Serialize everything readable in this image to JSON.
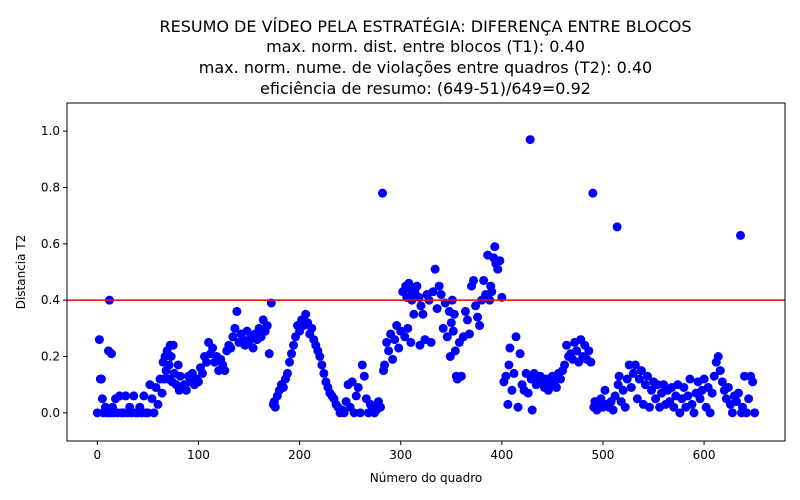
{
  "chart_data": {
    "type": "scatter",
    "title_lines": [
      "RESUMO DE VÍDEO PELA ESTRATÉGIA: DIFERENÇA ENTRE BLOCOS",
      "max. norm. dist. entre blocos (T1): 0.40",
      "max. norm. nume. de violações entre quadros (T2): 0.40",
      "eficiência de resumo: (649-51)/649=0.92"
    ],
    "xlabel": "Número do quadro",
    "ylabel": "Distancia T2",
    "xlim": [
      -30,
      680
    ],
    "ylim": [
      -0.1,
      1.1
    ],
    "xticks": [
      0,
      100,
      200,
      300,
      400,
      500,
      600
    ],
    "yticks": [
      0.0,
      0.2,
      0.4,
      0.6,
      0.8,
      1.0
    ],
    "ytick_labels": [
      "0.0",
      "0.2",
      "0.4",
      "0.6",
      "0.8",
      "1.0"
    ],
    "grid": false,
    "marker_color": "#0000ff",
    "threshold": {
      "y": 0.4,
      "color": "#ff0000"
    },
    "points": [
      [
        0,
        0.0
      ],
      [
        2,
        0.26
      ],
      [
        3,
        0.12
      ],
      [
        4,
        0.12
      ],
      [
        5,
        0.05
      ],
      [
        6,
        0.0
      ],
      [
        8,
        0.02
      ],
      [
        10,
        0.0
      ],
      [
        11,
        0.22
      ],
      [
        12,
        0.4
      ],
      [
        13,
        0.0
      ],
      [
        14,
        0.21
      ],
      [
        15,
        0.02
      ],
      [
        16,
        0.0
      ],
      [
        18,
        0.05
      ],
      [
        20,
        0.0
      ],
      [
        22,
        0.06
      ],
      [
        24,
        0.0
      ],
      [
        26,
        0.0
      ],
      [
        28,
        0.06
      ],
      [
        30,
        0.0
      ],
      [
        32,
        0.02
      ],
      [
        34,
        0.0
      ],
      [
        36,
        0.06
      ],
      [
        38,
        0.0
      ],
      [
        40,
        0.0
      ],
      [
        42,
        0.02
      ],
      [
        44,
        0.0
      ],
      [
        46,
        0.06
      ],
      [
        48,
        0.0
      ],
      [
        50,
        0.0
      ],
      [
        52,
        0.1
      ],
      [
        54,
        0.05
      ],
      [
        56,
        0.0
      ],
      [
        58,
        0.09
      ],
      [
        60,
        0.03
      ],
      [
        62,
        0.12
      ],
      [
        64,
        0.07
      ],
      [
        65,
        0.18
      ],
      [
        66,
        0.12
      ],
      [
        67,
        0.2
      ],
      [
        68,
        0.15
      ],
      [
        69,
        0.22
      ],
      [
        70,
        0.12
      ],
      [
        71,
        0.17
      ],
      [
        72,
        0.24
      ],
      [
        73,
        0.2
      ],
      [
        74,
        0.11
      ],
      [
        75,
        0.24
      ],
      [
        76,
        0.14
      ],
      [
        78,
        0.1
      ],
      [
        80,
        0.17
      ],
      [
        81,
        0.08
      ],
      [
        82,
        0.13
      ],
      [
        84,
        0.09
      ],
      [
        86,
        0.1
      ],
      [
        88,
        0.08
      ],
      [
        90,
        0.13
      ],
      [
        92,
        0.11
      ],
      [
        94,
        0.14
      ],
      [
        96,
        0.1
      ],
      [
        98,
        0.12
      ],
      [
        100,
        0.11
      ],
      [
        102,
        0.16
      ],
      [
        104,
        0.14
      ],
      [
        106,
        0.2
      ],
      [
        108,
        0.18
      ],
      [
        110,
        0.25
      ],
      [
        112,
        0.21
      ],
      [
        114,
        0.23
      ],
      [
        116,
        0.18
      ],
      [
        118,
        0.2
      ],
      [
        120,
        0.15
      ],
      [
        122,
        0.19
      ],
      [
        124,
        0.17
      ],
      [
        126,
        0.15
      ],
      [
        128,
        0.22
      ],
      [
        130,
        0.24
      ],
      [
        132,
        0.23
      ],
      [
        134,
        0.27
      ],
      [
        136,
        0.3
      ],
      [
        138,
        0.36
      ],
      [
        140,
        0.25
      ],
      [
        142,
        0.28
      ],
      [
        144,
        0.26
      ],
      [
        146,
        0.24
      ],
      [
        148,
        0.29
      ],
      [
        150,
        0.25
      ],
      [
        152,
        0.27
      ],
      [
        154,
        0.23
      ],
      [
        156,
        0.28
      ],
      [
        158,
        0.26
      ],
      [
        160,
        0.3
      ],
      [
        162,
        0.27
      ],
      [
        164,
        0.33
      ],
      [
        166,
        0.29
      ],
      [
        168,
        0.31
      ],
      [
        170,
        0.21
      ],
      [
        172,
        0.39
      ],
      [
        174,
        0.03
      ],
      [
        175,
        0.04
      ],
      [
        176,
        0.02
      ],
      [
        178,
        0.06
      ],
      [
        180,
        0.08
      ],
      [
        182,
        0.1
      ],
      [
        184,
        0.09
      ],
      [
        186,
        0.12
      ],
      [
        188,
        0.14
      ],
      [
        190,
        0.18
      ],
      [
        192,
        0.21
      ],
      [
        194,
        0.24
      ],
      [
        196,
        0.27
      ],
      [
        198,
        0.31
      ],
      [
        200,
        0.29
      ],
      [
        202,
        0.33
      ],
      [
        204,
        0.31
      ],
      [
        206,
        0.35
      ],
      [
        208,
        0.32
      ],
      [
        210,
        0.28
      ],
      [
        212,
        0.3
      ],
      [
        214,
        0.26
      ],
      [
        216,
        0.24
      ],
      [
        218,
        0.22
      ],
      [
        220,
        0.2
      ],
      [
        222,
        0.17
      ],
      [
        224,
        0.14
      ],
      [
        226,
        0.11
      ],
      [
        228,
        0.09
      ],
      [
        230,
        0.07
      ],
      [
        232,
        0.06
      ],
      [
        234,
        0.05
      ],
      [
        236,
        0.03
      ],
      [
        238,
        0.02
      ],
      [
        240,
        0.0
      ],
      [
        242,
        0.01
      ],
      [
        244,
        0.0
      ],
      [
        246,
        0.04
      ],
      [
        248,
        0.1
      ],
      [
        250,
        0.02
      ],
      [
        252,
        0.11
      ],
      [
        254,
        0.0
      ],
      [
        256,
        0.06
      ],
      [
        258,
        0.09
      ],
      [
        260,
        0.0
      ],
      [
        262,
        0.17
      ],
      [
        264,
        0.13
      ],
      [
        266,
        0.05
      ],
      [
        268,
        0.0
      ],
      [
        270,
        0.03
      ],
      [
        272,
        0.02
      ],
      [
        274,
        0.0
      ],
      [
        276,
        0.01
      ],
      [
        278,
        0.04
      ],
      [
        280,
        0.02
      ],
      [
        282,
        0.78
      ],
      [
        283,
        0.15
      ],
      [
        284,
        0.17
      ],
      [
        286,
        0.25
      ],
      [
        288,
        0.22
      ],
      [
        290,
        0.28
      ],
      [
        292,
        0.19
      ],
      [
        294,
        0.26
      ],
      [
        296,
        0.31
      ],
      [
        298,
        0.23
      ],
      [
        300,
        0.29
      ],
      [
        302,
        0.43
      ],
      [
        304,
        0.27
      ],
      [
        305,
        0.45
      ],
      [
        306,
        0.41
      ],
      [
        307,
        0.3
      ],
      [
        308,
        0.46
      ],
      [
        309,
        0.44
      ],
      [
        310,
        0.25
      ],
      [
        311,
        0.4
      ],
      [
        312,
        0.42
      ],
      [
        313,
        0.35
      ],
      [
        314,
        0.43
      ],
      [
        316,
        0.45
      ],
      [
        318,
        0.41
      ],
      [
        319,
        0.24
      ],
      [
        320,
        0.38
      ],
      [
        322,
        0.35
      ],
      [
        324,
        0.26
      ],
      [
        326,
        0.42
      ],
      [
        328,
        0.4
      ],
      [
        330,
        0.25
      ],
      [
        332,
        0.43
      ],
      [
        334,
        0.51
      ],
      [
        336,
        0.37
      ],
      [
        338,
        0.45
      ],
      [
        340,
        0.42
      ],
      [
        342,
        0.3
      ],
      [
        344,
        0.39
      ],
      [
        346,
        0.27
      ],
      [
        348,
        0.36
      ],
      [
        349,
        0.2
      ],
      [
        350,
        0.32
      ],
      [
        351,
        0.4
      ],
      [
        352,
        0.29
      ],
      [
        353,
        0.35
      ],
      [
        354,
        0.22
      ],
      [
        355,
        0.13
      ],
      [
        356,
        0.12
      ],
      [
        358,
        0.25
      ],
      [
        360,
        0.13
      ],
      [
        362,
        0.27
      ],
      [
        364,
        0.36
      ],
      [
        366,
        0.33
      ],
      [
        368,
        0.28
      ],
      [
        370,
        0.45
      ],
      [
        372,
        0.47
      ],
      [
        374,
        0.38
      ],
      [
        376,
        0.34
      ],
      [
        378,
        0.31
      ],
      [
        380,
        0.4
      ],
      [
        382,
        0.47
      ],
      [
        384,
        0.42
      ],
      [
        386,
        0.56
      ],
      [
        388,
        0.4
      ],
      [
        389,
        0.45
      ],
      [
        390,
        0.43
      ],
      [
        392,
        0.55
      ],
      [
        393,
        0.59
      ],
      [
        394,
        0.53
      ],
      [
        396,
        0.51
      ],
      [
        398,
        0.54
      ],
      [
        400,
        0.41
      ],
      [
        402,
        0.11
      ],
      [
        404,
        0.13
      ],
      [
        406,
        0.03
      ],
      [
        407,
        0.17
      ],
      [
        408,
        0.23
      ],
      [
        410,
        0.08
      ],
      [
        412,
        0.14
      ],
      [
        414,
        0.27
      ],
      [
        416,
        0.02
      ],
      [
        418,
        0.21
      ],
      [
        420,
        0.1
      ],
      [
        422,
        0.08
      ],
      [
        424,
        0.14
      ],
      [
        426,
        0.07
      ],
      [
        428,
        0.97
      ],
      [
        429,
        0.12
      ],
      [
        430,
        0.01
      ],
      [
        432,
        0.14
      ],
      [
        434,
        0.1
      ],
      [
        436,
        0.12
      ],
      [
        438,
        0.13
      ],
      [
        440,
        0.11
      ],
      [
        442,
        0.09
      ],
      [
        444,
        0.12
      ],
      [
        446,
        0.08
      ],
      [
        448,
        0.1
      ],
      [
        450,
        0.13
      ],
      [
        452,
        0.11
      ],
      [
        454,
        0.09
      ],
      [
        456,
        0.14
      ],
      [
        458,
        0.12
      ],
      [
        460,
        0.15
      ],
      [
        462,
        0.17
      ],
      [
        464,
        0.24
      ],
      [
        466,
        0.2
      ],
      [
        468,
        0.21
      ],
      [
        470,
        0.19
      ],
      [
        472,
        0.25
      ],
      [
        474,
        0.22
      ],
      [
        476,
        0.18
      ],
      [
        478,
        0.26
      ],
      [
        480,
        0.2
      ],
      [
        482,
        0.24
      ],
      [
        484,
        0.19
      ],
      [
        486,
        0.22
      ],
      [
        488,
        0.18
      ],
      [
        490,
        0.78
      ],
      [
        491,
        0.02
      ],
      [
        492,
        0.04
      ],
      [
        494,
        0.01
      ],
      [
        496,
        0.03
      ],
      [
        498,
        0.05
      ],
      [
        500,
        0.02
      ],
      [
        502,
        0.08
      ],
      [
        504,
        0.03
      ],
      [
        506,
        0.02
      ],
      [
        508,
        0.04
      ],
      [
        510,
        0.01
      ],
      [
        512,
        0.06
      ],
      [
        514,
        0.66
      ],
      [
        515,
        0.1
      ],
      [
        516,
        0.13
      ],
      [
        518,
        0.04
      ],
      [
        520,
        0.08
      ],
      [
        522,
        0.02
      ],
      [
        524,
        0.12
      ],
      [
        526,
        0.17
      ],
      [
        528,
        0.09
      ],
      [
        530,
        0.14
      ],
      [
        532,
        0.17
      ],
      [
        534,
        0.05
      ],
      [
        536,
        0.12
      ],
      [
        538,
        0.15
      ],
      [
        540,
        0.03
      ],
      [
        542,
        0.1
      ],
      [
        544,
        0.13
      ],
      [
        546,
        0.02
      ],
      [
        548,
        0.08
      ],
      [
        550,
        0.11
      ],
      [
        552,
        0.05
      ],
      [
        554,
        0.1
      ],
      [
        556,
        0.02
      ],
      [
        558,
        0.07
      ],
      [
        560,
        0.1
      ],
      [
        562,
        0.03
      ],
      [
        564,
        0.08
      ],
      [
        566,
        0.04
      ],
      [
        568,
        0.09
      ],
      [
        570,
        0.02
      ],
      [
        572,
        0.06
      ],
      [
        574,
        0.1
      ],
      [
        576,
        0.0
      ],
      [
        578,
        0.05
      ],
      [
        580,
        0.09
      ],
      [
        582,
        0.02
      ],
      [
        584,
        0.06
      ],
      [
        586,
        0.12
      ],
      [
        588,
        0.03
      ],
      [
        590,
        0.0
      ],
      [
        592,
        0.07
      ],
      [
        594,
        0.11
      ],
      [
        596,
        0.05
      ],
      [
        598,
        0.08
      ],
      [
        600,
        0.12
      ],
      [
        602,
        0.02
      ],
      [
        604,
        0.09
      ],
      [
        606,
        0.0
      ],
      [
        608,
        0.07
      ],
      [
        610,
        0.13
      ],
      [
        612,
        0.18
      ],
      [
        614,
        0.2
      ],
      [
        616,
        0.15
      ],
      [
        618,
        0.11
      ],
      [
        620,
        0.08
      ],
      [
        622,
        0.05
      ],
      [
        624,
        0.09
      ],
      [
        626,
        0.03
      ],
      [
        628,
        0.0
      ],
      [
        630,
        0.06
      ],
      [
        632,
        0.04
      ],
      [
        634,
        0.07
      ],
      [
        636,
        0.63
      ],
      [
        637,
        0.0
      ],
      [
        638,
        0.02
      ],
      [
        640,
        0.13
      ],
      [
        642,
        0.0
      ],
      [
        644,
        0.05
      ],
      [
        646,
        0.13
      ],
      [
        648,
        0.11
      ],
      [
        650,
        0.0
      ]
    ]
  }
}
